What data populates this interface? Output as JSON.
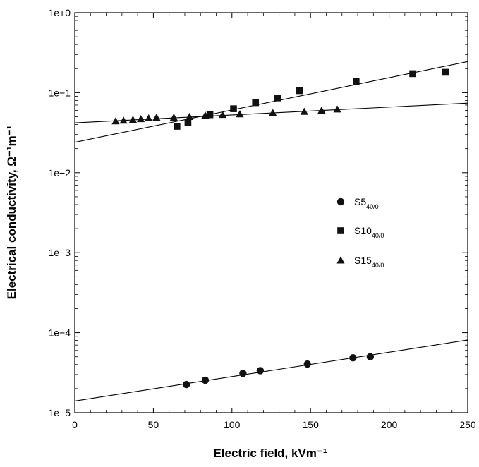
{
  "chart_data": {
    "type": "scatter",
    "xlabel": "Electric field, kVm⁻¹",
    "ylabel": "Electrical conductivity, Ω⁻¹m⁻¹",
    "xlim": [
      0,
      250
    ],
    "ylim": [
      1e-05,
      1
    ],
    "yscale": "log",
    "x_ticks": [
      0,
      50,
      100,
      150,
      200,
      250
    ],
    "x_tick_labels": [
      "0",
      "50",
      "100",
      "150",
      "200",
      "250"
    ],
    "y_ticks": [
      1e-05,
      0.0001,
      0.001,
      0.01,
      0.1,
      1
    ],
    "y_tick_labels": [
      "1e−5",
      "1e−4",
      "1e−3",
      "1e−2",
      "1e−1",
      "1e+0"
    ],
    "grid": false,
    "legend": "right-middle",
    "series": [
      {
        "name": "S5",
        "name_sub": "40/0",
        "marker": "circle",
        "x": [
          71,
          83,
          107,
          118,
          148,
          177,
          188
        ],
        "y": [
          2.25e-05,
          2.55e-05,
          3.1e-05,
          3.35e-05,
          4.05e-05,
          4.85e-05,
          5e-05
        ],
        "fit": {
          "x": [
            0,
            250
          ],
          "y": [
            1.4e-05,
            8.1e-05
          ]
        }
      },
      {
        "name": "S10",
        "name_sub": "40/0",
        "marker": "square",
        "x": [
          65,
          72,
          86,
          101,
          115,
          129,
          143,
          179,
          215,
          236
        ],
        "y": [
          0.038,
          0.042,
          0.053,
          0.063,
          0.075,
          0.086,
          0.106,
          0.138,
          0.173,
          0.18
        ],
        "fit": {
          "x": [
            0,
            250
          ],
          "y": [
            0.024,
            0.245
          ]
        }
      },
      {
        "name": "S15",
        "name_sub": "40/0",
        "marker": "triangle",
        "x": [
          26,
          31,
          37,
          42,
          47,
          52,
          63,
          73,
          83,
          94,
          105,
          126,
          146,
          157,
          167
        ],
        "y": [
          0.044,
          0.045,
          0.046,
          0.047,
          0.048,
          0.049,
          0.049,
          0.05,
          0.052,
          0.053,
          0.054,
          0.056,
          0.058,
          0.06,
          0.062
        ],
        "fit": {
          "x": [
            0,
            250
          ],
          "y": [
            0.042,
            0.074
          ]
        }
      }
    ]
  }
}
